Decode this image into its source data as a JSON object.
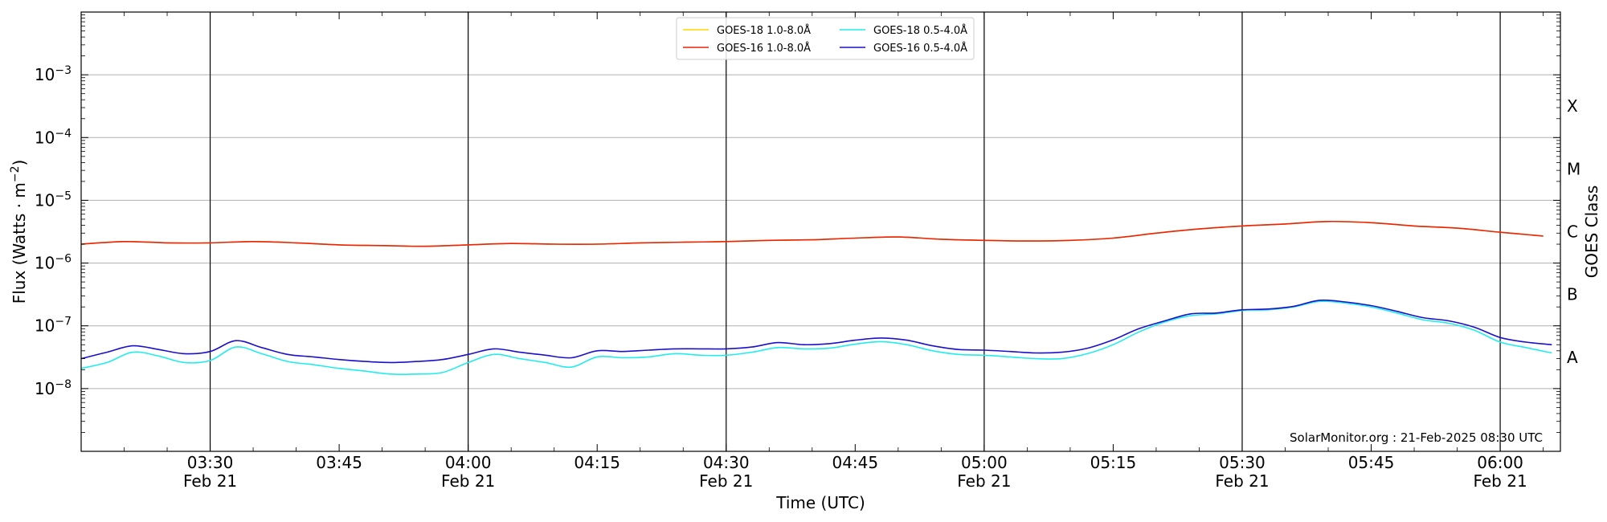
{
  "chart_data": {
    "type": "line",
    "xlabel": "Time (UTC)",
    "ylabel_main": "Flux (Watts · m",
    "ylabel_sup": "−2",
    "ylabel_close": ")",
    "y2label": "GOES Class",
    "yscale": "log",
    "x_start": "03:15",
    "x_end": "06:07",
    "xlim": [
      "03:15",
      "06:07"
    ],
    "ylim": [
      1e-09,
      0.01
    ],
    "y_ticks": [
      {
        "value": 1e-08,
        "base": "10",
        "exp": "−8"
      },
      {
        "value": 1e-07,
        "base": "10",
        "exp": "−7"
      },
      {
        "value": 1e-06,
        "base": "10",
        "exp": "−6"
      },
      {
        "value": 1e-05,
        "base": "10",
        "exp": "−5"
      },
      {
        "value": 0.0001,
        "base": "10",
        "exp": "−4"
      },
      {
        "value": 0.001,
        "base": "10",
        "exp": "−3"
      }
    ],
    "goes_classes": [
      {
        "label": "A",
        "value": 3.16e-08
      },
      {
        "label": "B",
        "value": 3.16e-07
      },
      {
        "label": "C",
        "value": 3.16e-06
      },
      {
        "label": "M",
        "value": 3.16e-05
      },
      {
        "label": "X",
        "value": 0.000316
      }
    ],
    "x_ticks": [
      {
        "time": "03:30",
        "label": "03:30",
        "sub": "Feb 21",
        "major": true
      },
      {
        "time": "03:45",
        "label": "03:45",
        "sub": "",
        "major": false
      },
      {
        "time": "04:00",
        "label": "04:00",
        "sub": "Feb 21",
        "major": true
      },
      {
        "time": "04:15",
        "label": "04:15",
        "sub": "",
        "major": false
      },
      {
        "time": "04:30",
        "label": "04:30",
        "sub": "Feb 21",
        "major": true
      },
      {
        "time": "04:45",
        "label": "04:45",
        "sub": "",
        "major": false
      },
      {
        "time": "05:00",
        "label": "05:00",
        "sub": "Feb 21",
        "major": true
      },
      {
        "time": "05:15",
        "label": "05:15",
        "sub": "",
        "major": false
      },
      {
        "time": "05:30",
        "label": "05:30",
        "sub": "Feb 21",
        "major": true
      },
      {
        "time": "05:45",
        "label": "05:45",
        "sub": "",
        "major": false
      },
      {
        "time": "06:00",
        "label": "06:00",
        "sub": "Feb 21",
        "major": true
      }
    ],
    "grid": true,
    "legend": "top-center",
    "legend_entries": [
      {
        "name": "GOES-18 1.0-8.0Å",
        "color": "#ffd700"
      },
      {
        "name": "GOES-16 1.0-8.0Å",
        "color": "#e8230f"
      },
      {
        "name": "GOES-18 0.5-4.0Å",
        "color": "#22ecec"
      },
      {
        "name": "GOES-16 0.5-4.0Å",
        "color": "#1c10c8"
      }
    ],
    "annotation": "SolarMonitor.org : 21-Feb-2025 08:30 UTC",
    "series": [
      {
        "name": "GOES-16 1.0-8.0Å",
        "color": "#e8230f",
        "x": [
          "03:15",
          "03:20",
          "03:25",
          "03:30",
          "03:35",
          "03:40",
          "03:45",
          "03:50",
          "03:55",
          "04:00",
          "04:05",
          "04:10",
          "04:15",
          "04:20",
          "04:25",
          "04:30",
          "04:35",
          "04:40",
          "04:45",
          "04:50",
          "04:55",
          "05:00",
          "05:05",
          "05:10",
          "05:15",
          "05:20",
          "05:25",
          "05:30",
          "05:35",
          "05:40",
          "05:45",
          "05:50",
          "05:55",
          "06:00",
          "06:05"
        ],
        "values": [
          2e-06,
          2.2e-06,
          2.1e-06,
          2.1e-06,
          2.2e-06,
          2.1e-06,
          1.95e-06,
          1.9e-06,
          1.85e-06,
          1.95e-06,
          2.05e-06,
          2e-06,
          2e-06,
          2.1e-06,
          2.15e-06,
          2.2e-06,
          2.3e-06,
          2.35e-06,
          2.5e-06,
          2.6e-06,
          2.4e-06,
          2.3e-06,
          2.25e-06,
          2.3e-06,
          2.5e-06,
          3e-06,
          3.5e-06,
          3.9e-06,
          4.2e-06,
          4.6e-06,
          4.4e-06,
          3.9e-06,
          3.6e-06,
          3.1e-06,
          2.7e-06
        ]
      },
      {
        "name": "GOES-18 1.0-8.0Å",
        "color": "#ffd700",
        "x": [
          "03:15",
          "03:20",
          "03:25",
          "03:30",
          "03:35",
          "03:40",
          "03:45",
          "03:50",
          "03:55",
          "04:00",
          "04:05",
          "04:10",
          "04:15",
          "04:20",
          "04:25",
          "04:30",
          "04:35",
          "04:40",
          "04:45",
          "04:50",
          "04:55",
          "05:00",
          "05:05",
          "05:10",
          "05:15",
          "05:20",
          "05:25",
          "05:30",
          "05:35",
          "05:40",
          "05:45",
          "05:50",
          "05:55",
          "06:00",
          "06:05"
        ],
        "values": [
          2e-06,
          2.2e-06,
          2.1e-06,
          2.1e-06,
          2.2e-06,
          2.1e-06,
          1.95e-06,
          1.9e-06,
          1.85e-06,
          1.95e-06,
          2.05e-06,
          2e-06,
          2e-06,
          2.1e-06,
          2.15e-06,
          2.2e-06,
          2.3e-06,
          2.35e-06,
          2.5e-06,
          2.6e-06,
          2.4e-06,
          2.3e-06,
          2.25e-06,
          2.3e-06,
          2.5e-06,
          3e-06,
          3.5e-06,
          3.9e-06,
          4.2e-06,
          4.6e-06,
          4.4e-06,
          3.9e-06,
          3.6e-06,
          3.1e-06,
          2.7e-06
        ]
      },
      {
        "name": "GOES-18 0.5-4.0Å",
        "color": "#22ecec",
        "x": [
          "03:15",
          "03:18",
          "03:21",
          "03:24",
          "03:27",
          "03:30",
          "03:33",
          "03:36",
          "03:39",
          "03:42",
          "03:45",
          "03:48",
          "03:51",
          "03:54",
          "03:57",
          "04:00",
          "04:03",
          "04:06",
          "04:09",
          "04:12",
          "04:15",
          "04:18",
          "04:21",
          "04:24",
          "04:27",
          "04:30",
          "04:33",
          "04:36",
          "04:39",
          "04:42",
          "04:45",
          "04:48",
          "04:51",
          "04:54",
          "04:57",
          "05:00",
          "05:03",
          "05:06",
          "05:09",
          "05:12",
          "05:15",
          "05:18",
          "05:21",
          "05:24",
          "05:27",
          "05:30",
          "05:33",
          "05:36",
          "05:39",
          "05:42",
          "05:45",
          "05:48",
          "05:51",
          "05:54",
          "05:57",
          "06:00",
          "06:03",
          "06:06"
        ],
        "values": [
          2.1e-08,
          2.6e-08,
          3.8e-08,
          3.3e-08,
          2.6e-08,
          2.8e-08,
          4.6e-08,
          3.6e-08,
          2.7e-08,
          2.4e-08,
          2.1e-08,
          1.9e-08,
          1.7e-08,
          1.7e-08,
          1.8e-08,
          2.6e-08,
          3.5e-08,
          3e-08,
          2.6e-08,
          2.2e-08,
          3.2e-08,
          3.1e-08,
          3.2e-08,
          3.6e-08,
          3.4e-08,
          3.4e-08,
          3.8e-08,
          4.5e-08,
          4.3e-08,
          4.4e-08,
          5.1e-08,
          5.6e-08,
          5e-08,
          4e-08,
          3.5e-08,
          3.4e-08,
          3.2e-08,
          3e-08,
          3e-08,
          3.6e-08,
          5e-08,
          8e-08,
          1.15e-07,
          1.45e-07,
          1.55e-07,
          1.75e-07,
          1.8e-07,
          2e-07,
          2.45e-07,
          2.3e-07,
          2e-07,
          1.6e-07,
          1.25e-07,
          1.1e-07,
          8.5e-08,
          5.5e-08,
          4.5e-08,
          3.7e-08
        ]
      },
      {
        "name": "GOES-16 0.5-4.0Å",
        "color": "#1c10c8",
        "x": [
          "03:15",
          "03:18",
          "03:21",
          "03:24",
          "03:27",
          "03:30",
          "03:33",
          "03:36",
          "03:39",
          "03:42",
          "03:45",
          "03:48",
          "03:51",
          "03:54",
          "03:57",
          "04:00",
          "04:03",
          "04:06",
          "04:09",
          "04:12",
          "04:15",
          "04:18",
          "04:21",
          "04:24",
          "04:27",
          "04:30",
          "04:33",
          "04:36",
          "04:39",
          "04:42",
          "04:45",
          "04:48",
          "04:51",
          "04:54",
          "04:57",
          "05:00",
          "05:03",
          "05:06",
          "05:09",
          "05:12",
          "05:15",
          "05:18",
          "05:21",
          "05:24",
          "05:27",
          "05:30",
          "05:33",
          "05:36",
          "05:39",
          "05:42",
          "05:45",
          "05:48",
          "05:51",
          "05:54",
          "05:57",
          "06:00",
          "06:03",
          "06:06"
        ],
        "values": [
          3e-08,
          3.8e-08,
          4.8e-08,
          4.2e-08,
          3.6e-08,
          3.9e-08,
          5.8e-08,
          4.5e-08,
          3.5e-08,
          3.2e-08,
          2.9e-08,
          2.7e-08,
          2.6e-08,
          2.7e-08,
          2.9e-08,
          3.5e-08,
          4.3e-08,
          3.8e-08,
          3.4e-08,
          3.1e-08,
          4e-08,
          3.9e-08,
          4.1e-08,
          4.3e-08,
          4.3e-08,
          4.3e-08,
          4.6e-08,
          5.4e-08,
          5e-08,
          5.2e-08,
          5.9e-08,
          6.4e-08,
          5.9e-08,
          4.8e-08,
          4.2e-08,
          4.1e-08,
          3.9e-08,
          3.7e-08,
          3.8e-08,
          4.4e-08,
          6e-08,
          9e-08,
          1.2e-07,
          1.55e-07,
          1.6e-07,
          1.8e-07,
          1.85e-07,
          2.05e-07,
          2.55e-07,
          2.4e-07,
          2.1e-07,
          1.7e-07,
          1.35e-07,
          1.2e-07,
          9.5e-08,
          6.5e-08,
          5.5e-08,
          5e-08
        ]
      }
    ]
  }
}
